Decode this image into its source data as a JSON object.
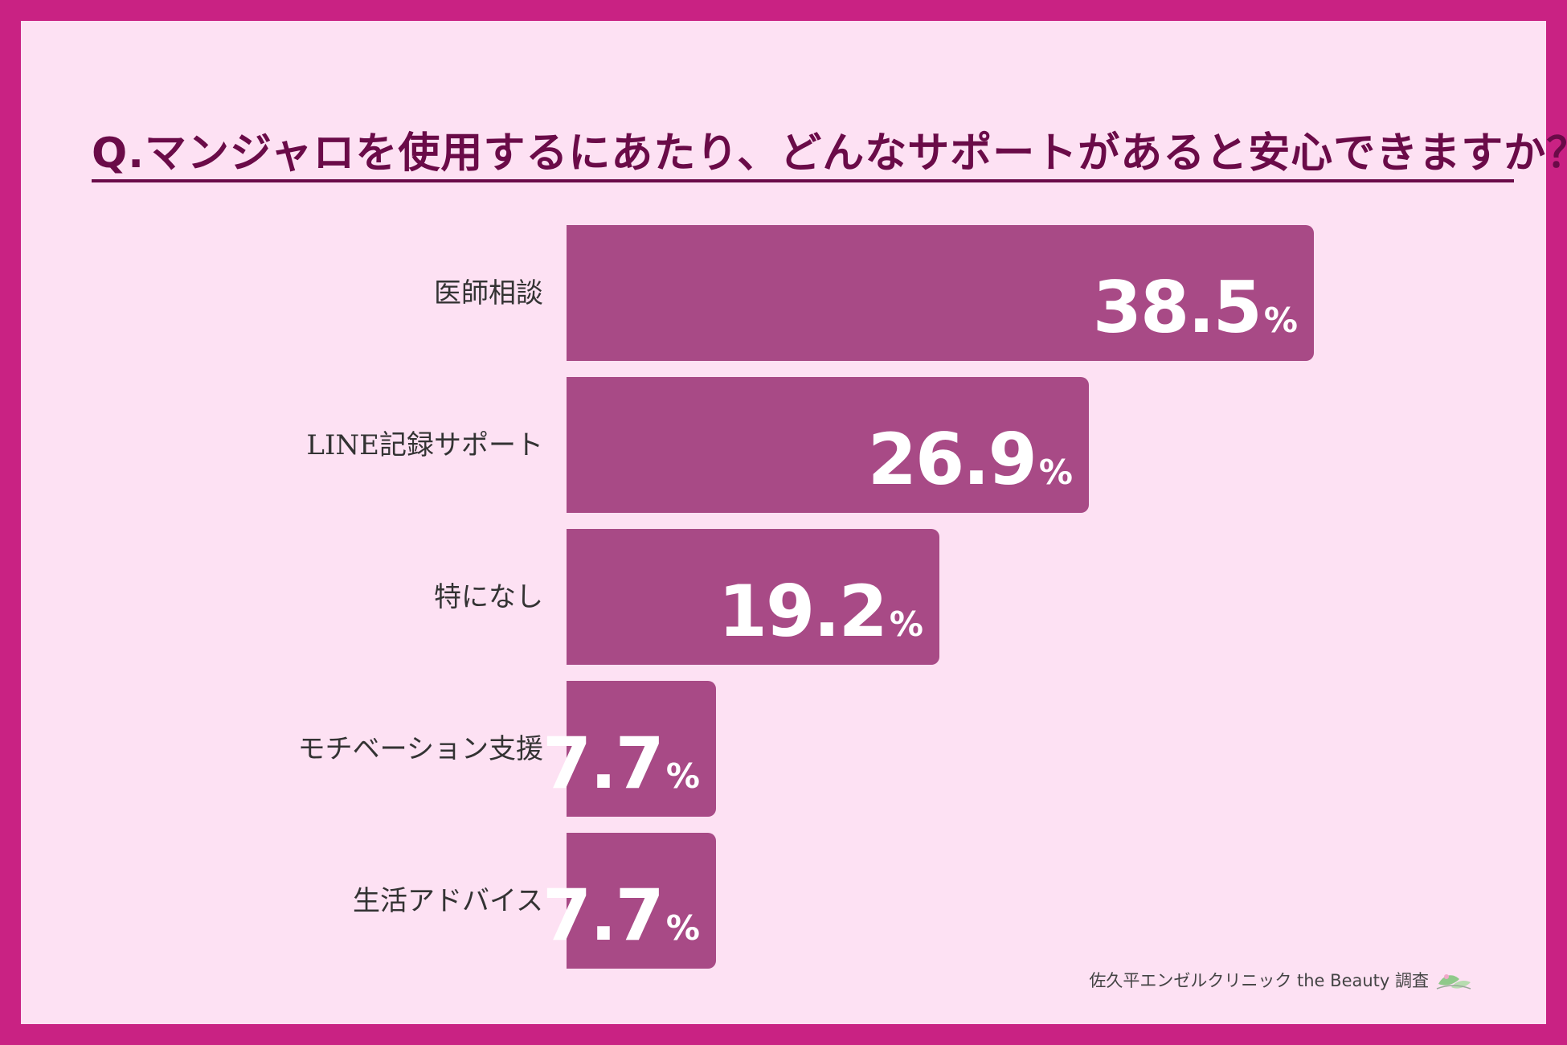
{
  "title": "Q.マンジャロを使用するにあたり、どんなサポートがあると安心できますか？",
  "credit": "佐久平エンゼルクリニック the Beauty 調査",
  "colors": {
    "frame": "#c92283",
    "background": "#fde1f3",
    "bar": "#a84a86",
    "title": "#6a0b48"
  },
  "chart_data": {
    "type": "bar",
    "orientation": "horizontal",
    "categories": [
      "医師相談",
      "LINE記録サポート",
      "特になし",
      "モチベーション支援",
      "生活アドバイス"
    ],
    "values": [
      38.5,
      26.9,
      19.2,
      7.7,
      7.7
    ],
    "unit": "%",
    "title": "Q.マンジャロを使用するにあたり、どんなサポートがあると安心できますか？",
    "xlabel": "",
    "ylabel": "",
    "grid": false,
    "legend": "none"
  }
}
